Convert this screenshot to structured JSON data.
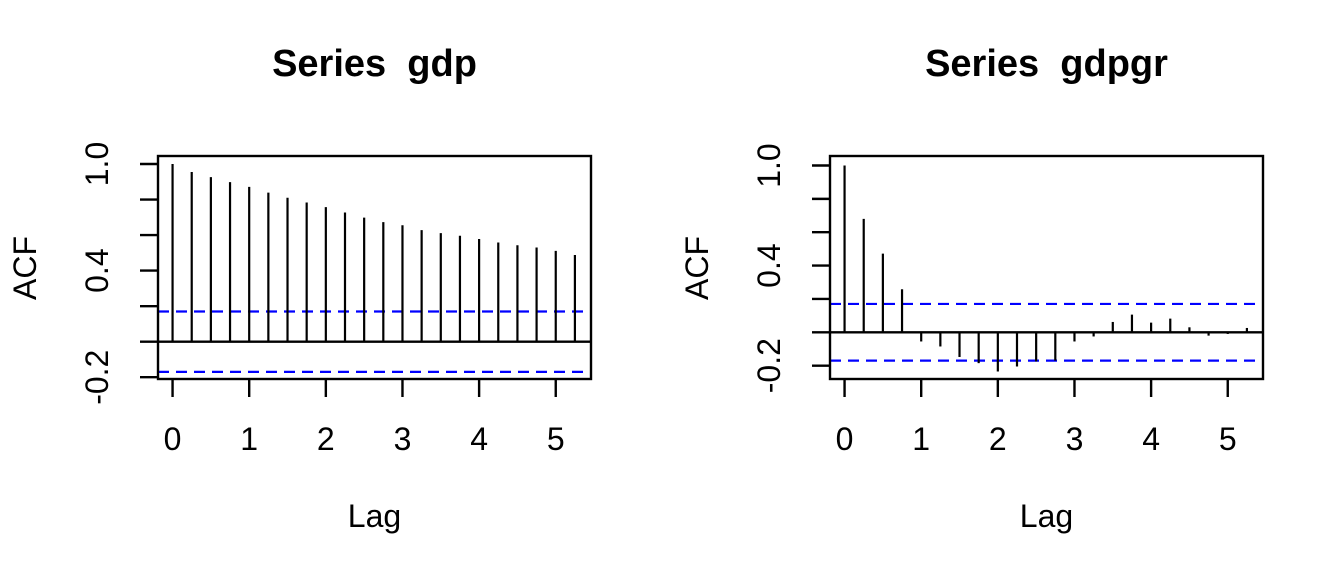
{
  "figure": {
    "background": "#ffffff",
    "text_color": "#000000"
  },
  "chart_data": [
    {
      "type": "bar",
      "subtype": "acf-stick-plot",
      "title": "Series  gdp",
      "xlabel": "Lag",
      "ylabel": "ACF",
      "bar_color": "#000000",
      "conf_color": "#0000ff",
      "conf_line_style": "dashed",
      "confidence_bounds": [
        0.17,
        -0.17
      ],
      "xlim": [
        -0.19,
        5.46
      ],
      "ylim": [
        -0.21,
        1.045
      ],
      "grid": false,
      "legend": "none",
      "x": [
        0,
        0.25,
        0.5,
        0.75,
        1,
        1.25,
        1.5,
        1.75,
        2,
        2.25,
        2.5,
        2.75,
        3,
        3.25,
        3.5,
        3.75,
        4,
        4.25,
        4.5,
        4.75,
        5,
        5.25
      ],
      "values": [
        1.0,
        0.955,
        0.926,
        0.898,
        0.871,
        0.839,
        0.81,
        0.783,
        0.757,
        0.727,
        0.698,
        0.673,
        0.655,
        0.628,
        0.611,
        0.596,
        0.578,
        0.558,
        0.543,
        0.53,
        0.511,
        0.488
      ],
      "x_ticks": [
        {
          "value": 0,
          "label": "0"
        },
        {
          "value": 1,
          "label": "1"
        },
        {
          "value": 2,
          "label": "2"
        },
        {
          "value": 3,
          "label": "3"
        },
        {
          "value": 4,
          "label": "4"
        },
        {
          "value": 5,
          "label": "5"
        }
      ],
      "y_ticks": [
        {
          "value": 1.0,
          "label": "1.0"
        },
        {
          "value": 0.8,
          "label": ""
        },
        {
          "value": 0.6,
          "label": ""
        },
        {
          "value": 0.4,
          "label": "0.4"
        },
        {
          "value": 0.2,
          "label": ""
        },
        {
          "value": 0.0,
          "label": ""
        },
        {
          "value": -0.2,
          "label": "-0.2"
        }
      ]
    },
    {
      "type": "bar",
      "subtype": "acf-stick-plot",
      "title": "Series  gdpgr",
      "xlabel": "Lag",
      "ylabel": "ACF",
      "bar_color": "#000000",
      "conf_color": "#0000ff",
      "conf_line_style": "dashed",
      "confidence_bounds": [
        0.17,
        -0.17
      ],
      "xlim": [
        -0.19,
        5.46
      ],
      "ylim": [
        -0.28,
        1.057
      ],
      "grid": false,
      "legend": "none",
      "x": [
        0,
        0.25,
        0.5,
        0.75,
        1,
        1.25,
        1.5,
        1.75,
        2,
        2.25,
        2.5,
        2.75,
        3,
        3.25,
        3.5,
        3.75,
        4,
        4.25,
        4.5,
        4.75,
        5,
        5.25
      ],
      "values": [
        1.0,
        0.68,
        0.472,
        0.258,
        -0.055,
        -0.085,
        -0.148,
        -0.185,
        -0.235,
        -0.205,
        -0.175,
        -0.17,
        -0.055,
        -0.025,
        0.062,
        0.106,
        0.058,
        0.082,
        0.03,
        -0.02,
        -0.01,
        0.026
      ],
      "x_ticks": [
        {
          "value": 0,
          "label": "0"
        },
        {
          "value": 1,
          "label": "1"
        },
        {
          "value": 2,
          "label": "2"
        },
        {
          "value": 3,
          "label": "3"
        },
        {
          "value": 4,
          "label": "4"
        },
        {
          "value": 5,
          "label": "5"
        }
      ],
      "y_ticks": [
        {
          "value": 1.0,
          "label": "1.0"
        },
        {
          "value": 0.8,
          "label": ""
        },
        {
          "value": 0.6,
          "label": ""
        },
        {
          "value": 0.4,
          "label": "0.4"
        },
        {
          "value": 0.2,
          "label": ""
        },
        {
          "value": 0.0,
          "label": ""
        },
        {
          "value": -0.2,
          "label": "-0.2"
        }
      ]
    }
  ]
}
